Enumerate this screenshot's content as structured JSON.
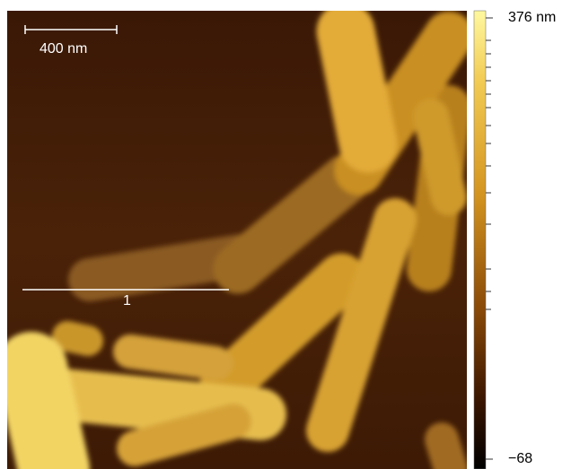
{
  "image": {
    "scale_bar_label": "400 nm",
    "profile_label": "1"
  },
  "colorbar": {
    "max_label": "376 nm",
    "min_label": "−68"
  }
}
